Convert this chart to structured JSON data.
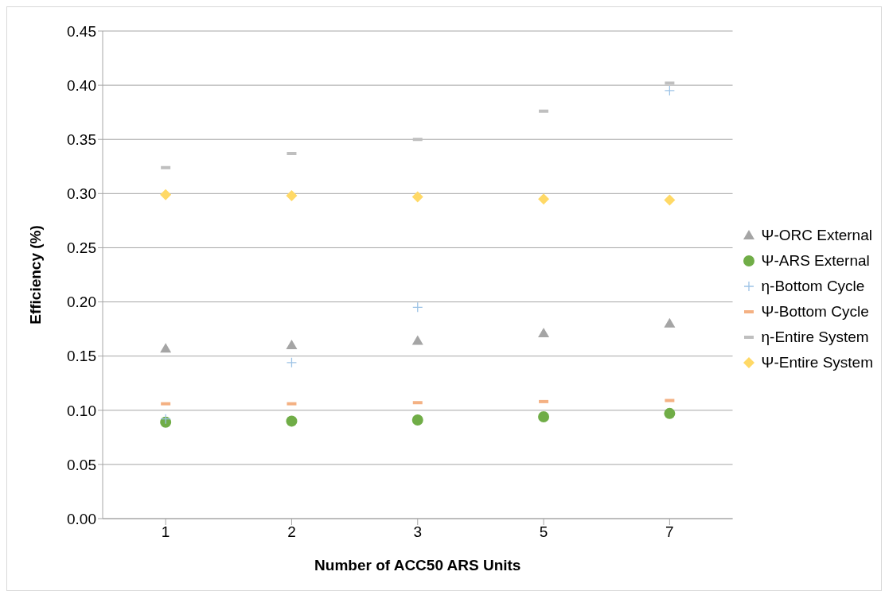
{
  "chart_data": {
    "type": "scatter",
    "xlabel": "Number of ACC50 ARS Units",
    "ylabel": "Efficiency (%)",
    "categories": [
      "1",
      "2",
      "3",
      "5",
      "7"
    ],
    "series": [
      {
        "name": "Ψ-ORC External",
        "color": "#a5a5a5",
        "marker": "triangle",
        "values": [
          0.157,
          0.16,
          0.164,
          0.171,
          0.18
        ]
      },
      {
        "name": "Ψ-ARS External",
        "color": "#70ad47",
        "marker": "circle",
        "values": [
          0.089,
          0.09,
          0.091,
          0.094,
          0.097
        ]
      },
      {
        "name": "η-Bottom Cycle",
        "color": "#9dc3e6",
        "marker": "cross",
        "values": [
          0.092,
          0.144,
          0.195,
          null,
          0.395
        ]
      },
      {
        "name": "Ψ-Bottom Cycle",
        "color": "#f4b183",
        "values": [
          0.106,
          0.106,
          0.107,
          0.108,
          0.109
        ]
      },
      {
        "name": "η-Entire System",
        "color": "#bfbfbf",
        "values": [
          0.324,
          0.337,
          0.35,
          0.376,
          0.402
        ]
      },
      {
        "name": "Ψ-Entire System",
        "color": "#ffd966",
        "marker": "diamond",
        "values": [
          0.299,
          0.298,
          0.297,
          0.295,
          0.294
        ]
      }
    ],
    "ylim": [
      0,
      0.45
    ],
    "yticks": [
      {
        "value": 0,
        "label": "0.00"
      },
      {
        "value": 0.05,
        "label": "0.05"
      },
      {
        "value": 0.1,
        "label": "0.10"
      },
      {
        "value": 0.15,
        "label": "0.15"
      },
      {
        "value": 0.2,
        "label": "0.20"
      },
      {
        "value": 0.25,
        "label": "0.25"
      },
      {
        "value": 0.3,
        "label": "0.30"
      },
      {
        "value": 0.35,
        "label": "0.35"
      },
      {
        "value": 0.4,
        "label": "0.40"
      },
      {
        "value": 0.45,
        "label": "0.45"
      }
    ],
    "grid": "y",
    "legend": "right"
  }
}
